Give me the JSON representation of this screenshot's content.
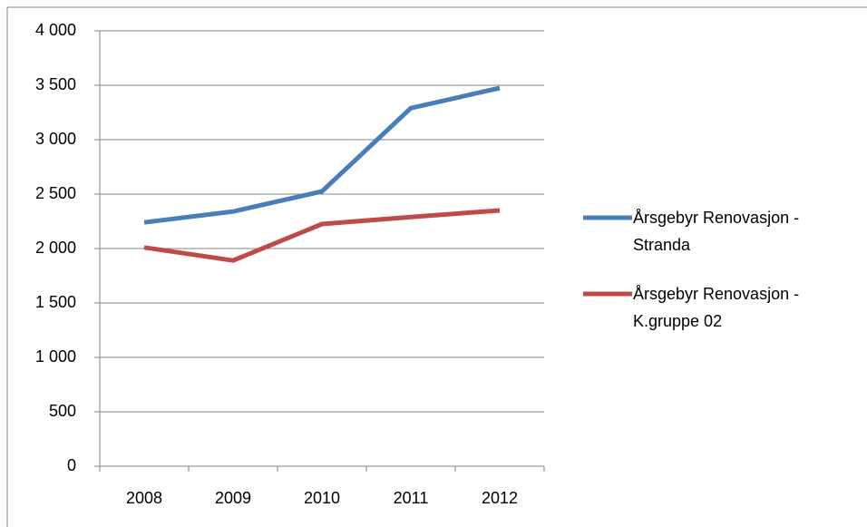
{
  "chart_data": {
    "type": "line",
    "categories": [
      "2008",
      "2009",
      "2010",
      "2011",
      "2012"
    ],
    "series": [
      {
        "name": "Årsgebyr Renovasjon - Stranda",
        "color": "#4a7ebb",
        "values": [
          2240,
          2340,
          2525,
          3290,
          3475
        ]
      },
      {
        "name": "Årsgebyr Renovasjon - K.gruppe 02",
        "color": "#be4b48",
        "values": [
          2010,
          1890,
          2225,
          2290,
          2350
        ]
      }
    ],
    "ylim": [
      0,
      4000
    ],
    "yticks": [
      0,
      500,
      {
        "value": 1000,
        "label": "1 000"
      },
      {
        "value": 1500,
        "label": "1 500"
      },
      {
        "value": 2000,
        "label": "2 000"
      },
      {
        "value": 2500,
        "label": "2 500"
      },
      {
        "value": 3000,
        "label": "3 000"
      },
      {
        "value": 3500,
        "label": "3 500"
      },
      {
        "value": 4000,
        "label": "4 000"
      }
    ],
    "grid": true,
    "legend": "right"
  }
}
